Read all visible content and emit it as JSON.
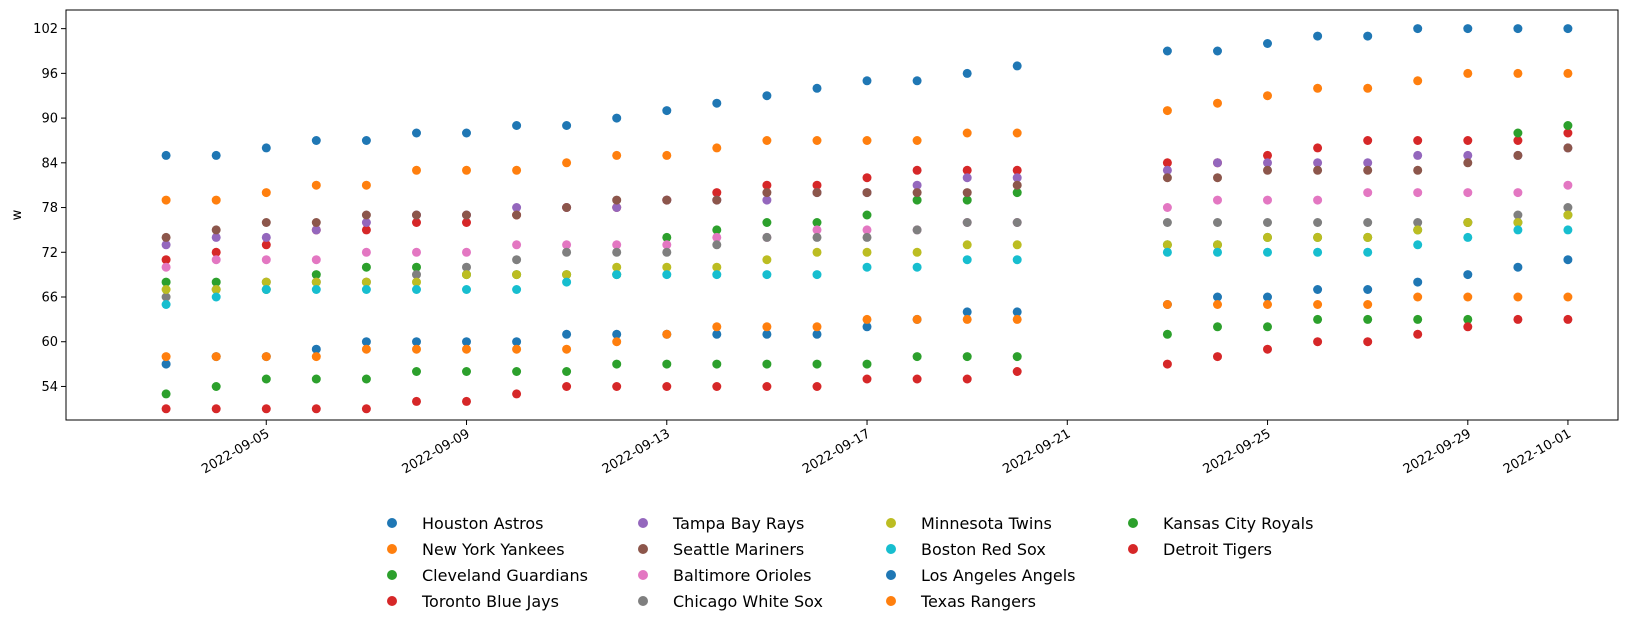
{
  "chart_data": {
    "type": "scatter",
    "title": "",
    "xlabel": "",
    "ylabel": "w",
    "xlim": [
      "2022-09-01",
      "2022-10-02"
    ],
    "ylim": [
      49.5,
      104.5
    ],
    "y_ticks": [
      54,
      60,
      66,
      72,
      78,
      84,
      90,
      96,
      102
    ],
    "x_ticks": [
      "2022-09-05",
      "2022-09-09",
      "2022-09-13",
      "2022-09-17",
      "2022-09-21",
      "2022-09-25",
      "2022-09-29",
      "2022-10-01"
    ],
    "grid": false,
    "legend_position": "bottom-center",
    "dates": [
      "2022-09-03",
      "2022-09-04",
      "2022-09-05",
      "2022-09-06",
      "2022-09-07",
      "2022-09-08",
      "2022-09-09",
      "2022-09-10",
      "2022-09-11",
      "2022-09-12",
      "2022-09-13",
      "2022-09-14",
      "2022-09-15",
      "2022-09-16",
      "2022-09-17",
      "2022-09-18",
      "2022-09-19",
      "2022-09-20",
      "2022-09-23",
      "2022-09-24",
      "2022-09-25",
      "2022-09-26",
      "2022-09-27",
      "2022-09-28",
      "2022-09-29",
      "2022-09-30",
      "2022-10-01"
    ],
    "series": [
      {
        "name": "Houston Astros",
        "color": "#1f77b4",
        "values": [
          85,
          85,
          86,
          87,
          87,
          88,
          88,
          89,
          89,
          90,
          91,
          92,
          93,
          94,
          95,
          95,
          96,
          97,
          99,
          99,
          100,
          101,
          101,
          102,
          102,
          102,
          102
        ]
      },
      {
        "name": "New York Yankees",
        "color": "#ff7f0e",
        "values": [
          79,
          79,
          80,
          81,
          81,
          83,
          83,
          83,
          84,
          85,
          85,
          86,
          87,
          87,
          87,
          87,
          88,
          88,
          91,
          92,
          93,
          94,
          94,
          95,
          96,
          96,
          96
        ]
      },
      {
        "name": "Cleveland Guardians",
        "color": "#2ca02c",
        "values": [
          68,
          68,
          67,
          69,
          70,
          70,
          69,
          69,
          69,
          69,
          74,
          75,
          76,
          76,
          77,
          79,
          79,
          80,
          73,
          73,
          74,
          74,
          74,
          75,
          76,
          76,
          77
        ]
      },
      {
        "name": "Toronto Blue Jays",
        "color": "#d62728",
        "values": [
          71,
          72,
          73,
          75,
          75,
          76,
          76,
          77,
          78,
          78,
          79,
          80,
          81,
          81,
          82,
          83,
          83,
          83,
          84,
          84,
          85,
          86,
          87,
          87,
          87,
          87,
          88
        ]
      },
      {
        "name": "Tampa Bay Rays",
        "color": "#9467bd",
        "values": [
          73,
          74,
          74,
          75,
          76,
          77,
          77,
          78,
          78,
          78,
          79,
          79,
          79,
          80,
          80,
          81,
          82,
          82,
          83,
          84,
          84,
          84,
          84,
          85,
          85,
          85,
          86
        ]
      },
      {
        "name": "Seattle Mariners",
        "color": "#8c564b",
        "values": [
          74,
          75,
          76,
          76,
          77,
          77,
          77,
          77,
          78,
          79,
          79,
          79,
          80,
          80,
          80,
          80,
          80,
          81,
          82,
          82,
          83,
          83,
          83,
          83,
          84,
          85,
          86
        ]
      },
      {
        "name": "Baltimore Orioles",
        "color": "#e377c2",
        "values": [
          70,
          71,
          71,
          71,
          72,
          72,
          72,
          73,
          73,
          73,
          73,
          74,
          74,
          75,
          75,
          75,
          76,
          76,
          78,
          79,
          79,
          79,
          80,
          80,
          80,
          80,
          81
        ]
      },
      {
        "name": "Chicago White Sox",
        "color": "#7f7f7f",
        "values": [
          66,
          67,
          68,
          68,
          68,
          69,
          70,
          71,
          72,
          72,
          72,
          73,
          74,
          74,
          74,
          75,
          76,
          76,
          76,
          76,
          76,
          76,
          76,
          76,
          76,
          77,
          78
        ]
      },
      {
        "name": "Minnesota Twins",
        "color": "#bcbd22",
        "values": [
          67,
          67,
          68,
          68,
          68,
          68,
          69,
          69,
          69,
          70,
          70,
          70,
          71,
          72,
          72,
          72,
          73,
          73,
          73,
          73,
          74,
          74,
          74,
          75,
          76,
          76,
          77
        ]
      },
      {
        "name": "Boston Red Sox",
        "color": "#17becf",
        "values": [
          65,
          66,
          67,
          67,
          67,
          67,
          67,
          67,
          68,
          69,
          69,
          69,
          69,
          69,
          70,
          70,
          71,
          71,
          72,
          72,
          72,
          72,
          72,
          73,
          74,
          75,
          75
        ]
      },
      {
        "name": "Los Angeles Angels",
        "color": "#1f77b4",
        "values": [
          57,
          58,
          58,
          59,
          60,
          60,
          60,
          60,
          61,
          61,
          61,
          61,
          61,
          61,
          62,
          63,
          64,
          64,
          65,
          66,
          66,
          67,
          67,
          68,
          69,
          70,
          71
        ]
      },
      {
        "name": "Texas Rangers",
        "color": "#ff7f0e",
        "values": [
          58,
          58,
          58,
          58,
          59,
          59,
          59,
          59,
          59,
          60,
          61,
          62,
          62,
          62,
          63,
          63,
          63,
          63,
          65,
          65,
          65,
          65,
          65,
          66,
          66,
          66,
          66
        ]
      },
      {
        "name": "Kansas City Royals",
        "color": "#2ca02c",
        "values": [
          53,
          54,
          55,
          55,
          55,
          56,
          56,
          56,
          56,
          57,
          57,
          57,
          57,
          57,
          57,
          58,
          58,
          58,
          61,
          62,
          62,
          63,
          63,
          63,
          63,
          88,
          89
        ]
      },
      {
        "name": "Detroit Tigers",
        "color": "#d62728",
        "values": [
          51,
          51,
          51,
          51,
          51,
          52,
          52,
          53,
          54,
          54,
          54,
          54,
          54,
          54,
          55,
          55,
          55,
          56,
          57,
          58,
          59,
          60,
          60,
          61,
          62,
          63,
          63
        ]
      }
    ]
  }
}
